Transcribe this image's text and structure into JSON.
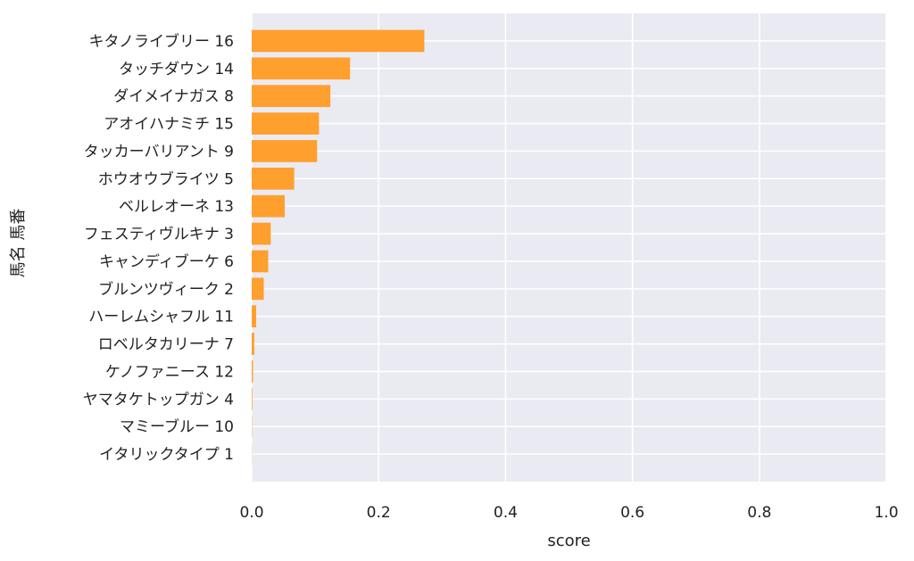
{
  "chart_data": {
    "type": "bar",
    "orientation": "horizontal",
    "categories": [
      "キタノライブリー 16",
      "タッチダウン 14",
      "ダイメイナガス 8",
      "アオイハナミチ 15",
      "タッカーバリアント 9",
      "ホウオウブライツ 5",
      "ベルレオーネ 13",
      "フェスティヴルキナ 3",
      "キャンディブーケ 6",
      "ブルンツヴィーク 2",
      "ハーレムシャフル 11",
      "ロベルタカリーナ 7",
      "ケノファニース 12",
      "ヤマタケトップガン 4",
      "マミーブルー 10",
      "イタリックタイプ 1"
    ],
    "values": [
      0.272,
      0.155,
      0.124,
      0.106,
      0.103,
      0.067,
      0.052,
      0.03,
      0.026,
      0.019,
      0.007,
      0.004,
      0.002,
      0.001,
      0.0005,
      0.0003
    ],
    "xlabel": "score",
    "ylabel": "馬名 馬番",
    "xlim": [
      0,
      1.0
    ],
    "xticks": [
      "0.0",
      "0.2",
      "0.4",
      "0.6",
      "0.8",
      "1.0"
    ],
    "grid": true,
    "colors": {
      "bar": "#ff9f2e",
      "background": "#eaeaf2",
      "grid": "#ffffff"
    }
  }
}
